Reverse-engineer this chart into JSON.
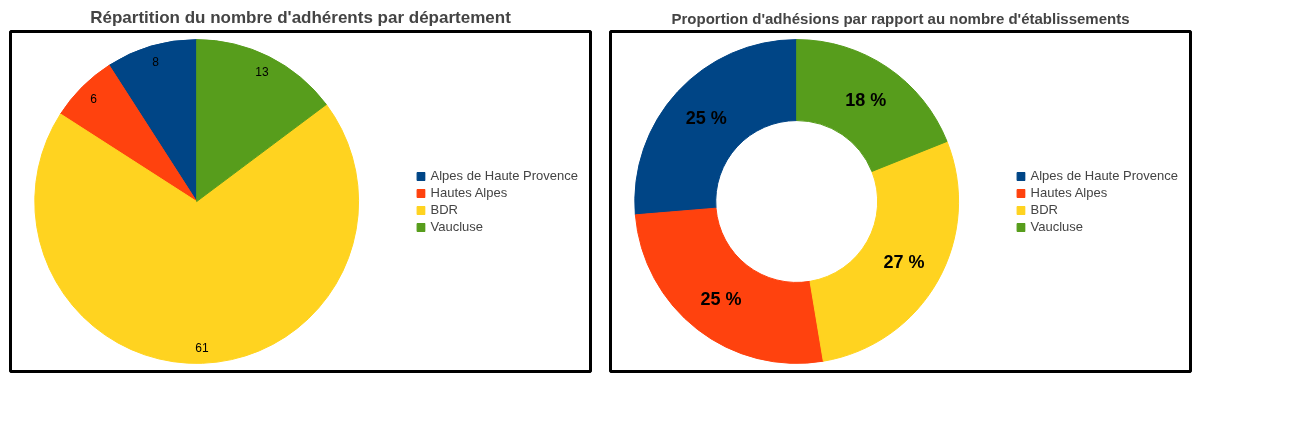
{
  "chart_data": [
    {
      "type": "pie",
      "title": "Répartition du nombre d'adhérents par département",
      "categories": [
        "Alpes de Haute Provence",
        "Hautes Alpes",
        "BDR",
        "Vaucluse"
      ],
      "values": [
        8,
        6,
        61,
        13
      ],
      "colors": [
        "#004586",
        "#ff420e",
        "#ffd320",
        "#579d1c"
      ],
      "data_labels": true,
      "legend": "right"
    },
    {
      "type": "donut",
      "title": "Proportion d'adhésions par rapport au nombre d'établissements",
      "categories": [
        "Alpes de Haute Provence",
        "Hautes Alpes",
        "BDR",
        "Vaucluse"
      ],
      "values": [
        25,
        25,
        27,
        18
      ],
      "colors": [
        "#004586",
        "#ff420e",
        "#ffd320",
        "#579d1c"
      ],
      "value_labels": [
        "25 %",
        "25 %",
        "27 %",
        "18 %"
      ],
      "legend": "right"
    }
  ]
}
